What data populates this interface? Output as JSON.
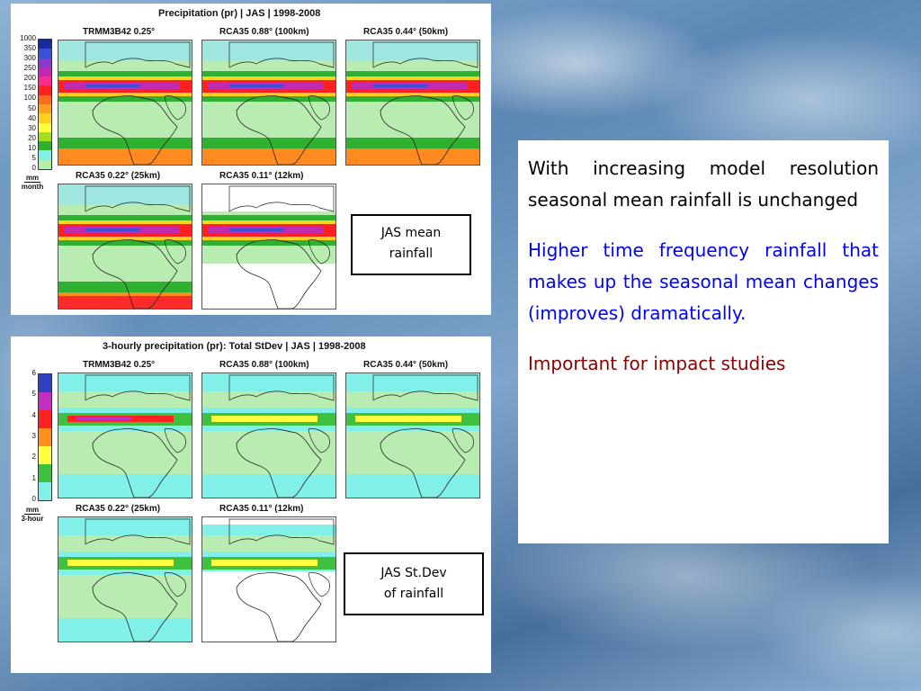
{
  "figure_top": {
    "title": "Precipitation (pr) | JAS | 1998-2008",
    "colorbar_labels": [
      "1000",
      "350",
      "300",
      "250",
      "200",
      "150",
      "100",
      "50",
      "40",
      "30",
      "20",
      "10",
      "5",
      "0"
    ],
    "colorbar_colors": [
      "#1a2a9a",
      "#3a50d8",
      "#8a3ac8",
      "#c02ab0",
      "#ff2a8a",
      "#ff2020",
      "#ff6a20",
      "#ffa020",
      "#ffd020",
      "#ffff40",
      "#a0e020",
      "#30b030",
      "#80f0e8",
      "#b0f0a8"
    ],
    "unit_top": "mm",
    "unit_bottom": "month",
    "maps": [
      {
        "label": "TRMM3B42 0.25°"
      },
      {
        "label": "RCA35 0.88° (100km)"
      },
      {
        "label": "RCA35 0.44° (50km)"
      },
      {
        "label": "RCA35 0.22° (25km)"
      },
      {
        "label": "RCA35 0.11° (12km)"
      }
    ]
  },
  "figure_bottom": {
    "title": "3-hourly precipitation (pr): Total StDev | JAS | 1998-2008",
    "colorbar_labels": [
      "6",
      "5",
      "4",
      "3",
      "2",
      "1",
      "0"
    ],
    "colorbar_colors": [
      "#3040c0",
      "#c030c0",
      "#ff2020",
      "#ff9020",
      "#ffff40",
      "#40c040",
      "#80f0e8"
    ],
    "unit_top": "mm",
    "unit_bottom": "3-hour",
    "maps": [
      {
        "label": "TRMM3B42 0.25°"
      },
      {
        "label": "RCA35 0.88° (100km)"
      },
      {
        "label": "RCA35 0.44° (50km)"
      },
      {
        "label": "RCA35 0.22° (25km)"
      },
      {
        "label": "RCA35 0.11° (12km)"
      }
    ]
  },
  "callouts": {
    "top_line1": "JAS mean",
    "top_line2": "rainfall",
    "bottom_line1": "JAS St.Dev",
    "bottom_line2": "of rainfall"
  },
  "textbox": {
    "para1": "With increasing model resolution seasonal mean rainfall is unchanged",
    "para2": "Higher time frequency rainfall that makes up the seasonal mean changes (improves) dramatically.",
    "para3": "Important for impact studies",
    "colors": {
      "para1": "#000000",
      "para2": "#0000ff",
      "para3": "#8b0000"
    }
  }
}
